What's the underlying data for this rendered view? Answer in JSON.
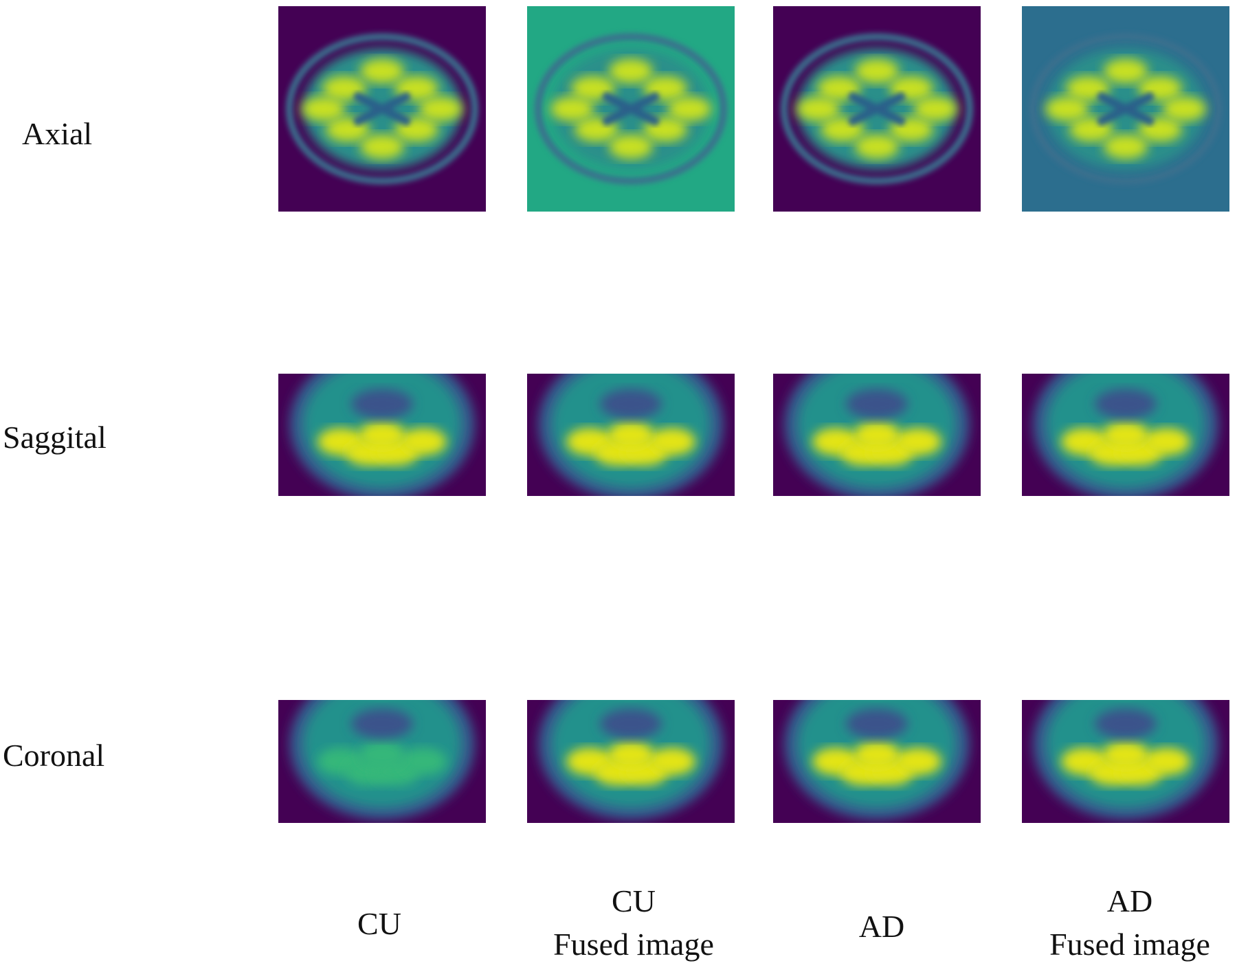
{
  "row_labels": [
    "Axial",
    "Saggital",
    "Coronal"
  ],
  "column_labels": [
    [
      "CU"
    ],
    [
      "CU",
      "Fused image"
    ],
    [
      "AD"
    ],
    [
      "AD",
      "Fused image"
    ]
  ]
}
